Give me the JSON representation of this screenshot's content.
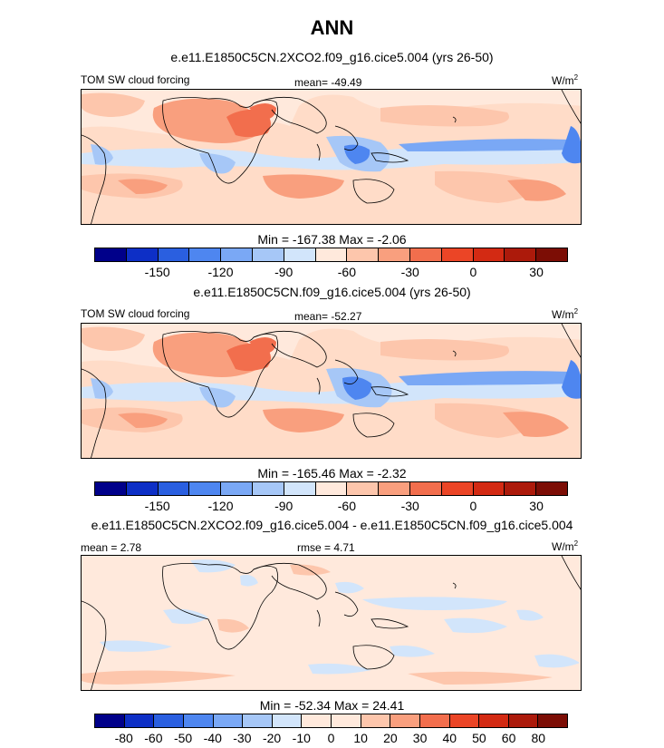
{
  "title": "ANN",
  "colors": {
    "colorbar": [
      "#00008a",
      "#0d2fc6",
      "#2a5fe0",
      "#4e86f0",
      "#7aa8f5",
      "#a6c7f7",
      "#d2e5fb",
      "#ffe9dc",
      "#fdc6ac",
      "#f99f7e",
      "#f26e4d",
      "#eb4526",
      "#d32a13",
      "#ac1a0b",
      "#7c0d05"
    ]
  },
  "chart_data": [
    {
      "type": "heatmap",
      "title": "e.e11.E1850C5CN.2XCO2.f09_g16.cice5.004 (yrs 26-50)",
      "left_label": "TOM SW cloud forcing",
      "center_label": "mean= -49.49",
      "units": "W/m",
      "units_sup": "2",
      "stats": "Min = -167.38 Max =  -2.06",
      "colorbar_ticks": [
        "-150",
        "-120",
        "-90",
        "-60",
        "-30",
        "0",
        "30"
      ]
    },
    {
      "type": "heatmap",
      "title": "e.e11.E1850C5CN.f09_g16.cice5.004 (yrs 26-50)",
      "left_label": "TOM SW cloud forcing",
      "center_label": "mean= -52.27",
      "units": "W/m",
      "units_sup": "2",
      "stats": "Min = -165.46 Max =  -2.32",
      "colorbar_ticks": [
        "-150",
        "-120",
        "-90",
        "-60",
        "-30",
        "0",
        "30"
      ]
    },
    {
      "type": "heatmap",
      "title": "e.e11.E1850C5CN.2XCO2.f09_g16.cice5.004 - e.e11.E1850C5CN.f09_g16.cice5.004",
      "left_label": "mean =   2.78",
      "center_label": "rmse =   4.71",
      "units": "W/m",
      "units_sup": "2",
      "stats": "Min = -52.34 Max =  24.41",
      "colorbar_ticks": [
        "-80",
        "-60",
        "-50",
        "-40",
        "-30",
        "-20",
        "-10",
        "0",
        "10",
        "20",
        "30",
        "40",
        "50",
        "60",
        "80"
      ]
    }
  ]
}
